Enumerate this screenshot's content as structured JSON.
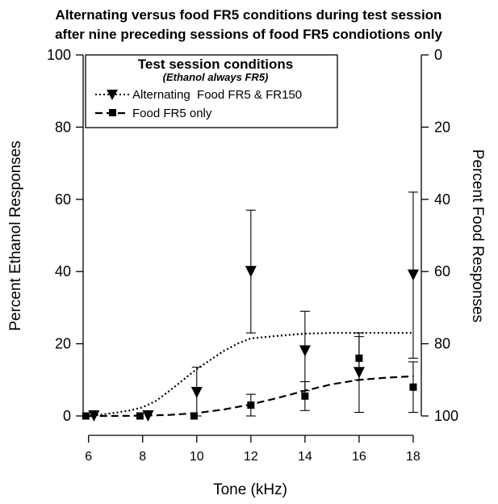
{
  "chart_data": {
    "type": "line",
    "title_line1": "Alternating versus food FR5 conditions during test session",
    "title_line2": "after nine preceding sessions of food FR5 condiotions only",
    "xlabel": "Tone (kHz)",
    "ylabel_left": "Percent Ethanol Responses",
    "ylabel_right": "Percent Food Responses",
    "x_ticks": [
      6,
      8,
      10,
      12,
      14,
      16,
      18
    ],
    "xlim": [
      5.8,
      18.3
    ],
    "y_left_ticks": [
      0,
      20,
      40,
      60,
      80,
      100
    ],
    "y_right_ticks": [
      100,
      80,
      60,
      40,
      20,
      0
    ],
    "ylim": [
      0,
      100
    ],
    "legend": {
      "title": "Test session conditions",
      "subtitle": "(Ethanol always FR5)",
      "placement": "top-center"
    },
    "series": [
      {
        "name": "Alternating  Food FR5 & FR150",
        "marker": "triangle-down",
        "line_style": "dotted",
        "points": [
          {
            "x": 6.2,
            "y": 0,
            "err": 0
          },
          {
            "x": 8.2,
            "y": 0,
            "err": 0
          },
          {
            "x": 10,
            "y": 6.5,
            "err": 7
          },
          {
            "x": 12,
            "y": 40,
            "err": 17
          },
          {
            "x": 14,
            "y": 18,
            "err": 11
          },
          {
            "x": 16,
            "y": 12,
            "err": 11
          },
          {
            "x": 18,
            "y": 39,
            "err": 23
          }
        ],
        "fit": {
          "x": [
            6,
            6.5,
            7,
            7.5,
            8,
            8.5,
            9,
            9.5,
            10,
            10.5,
            11,
            11.5,
            12,
            13,
            14,
            15,
            16,
            17,
            18
          ],
          "y": [
            0,
            0.4,
            0.9,
            1.5,
            2.4,
            4.2,
            7.0,
            10.0,
            13.0,
            15.5,
            18.0,
            20.0,
            21.5,
            22.2,
            22.8,
            23.0,
            23.0,
            23.0,
            23.0
          ]
        }
      },
      {
        "name": "Food FR5 only",
        "marker": "square",
        "line_style": "dashed",
        "points": [
          {
            "x": 5.9,
            "y": 0,
            "err": 0
          },
          {
            "x": 7.9,
            "y": 0,
            "err": 0
          },
          {
            "x": 9.9,
            "y": 0,
            "err": 0
          },
          {
            "x": 12,
            "y": 3,
            "err": 3
          },
          {
            "x": 14,
            "y": 5.5,
            "err": 4
          },
          {
            "x": 16,
            "y": 16,
            "err": 6
          },
          {
            "x": 18,
            "y": 8,
            "err": 7
          }
        ],
        "fit": {
          "x": [
            6,
            7,
            8,
            9,
            10,
            11,
            12,
            13,
            14,
            15,
            16,
            17,
            18
          ],
          "y": [
            0,
            0,
            0.1,
            0.3,
            0.8,
            1.8,
            3.2,
            5.0,
            7.0,
            8.8,
            10.0,
            10.6,
            11.0
          ]
        }
      }
    ],
    "colors": {
      "line": "#000000",
      "background": "#ffffff"
    }
  }
}
